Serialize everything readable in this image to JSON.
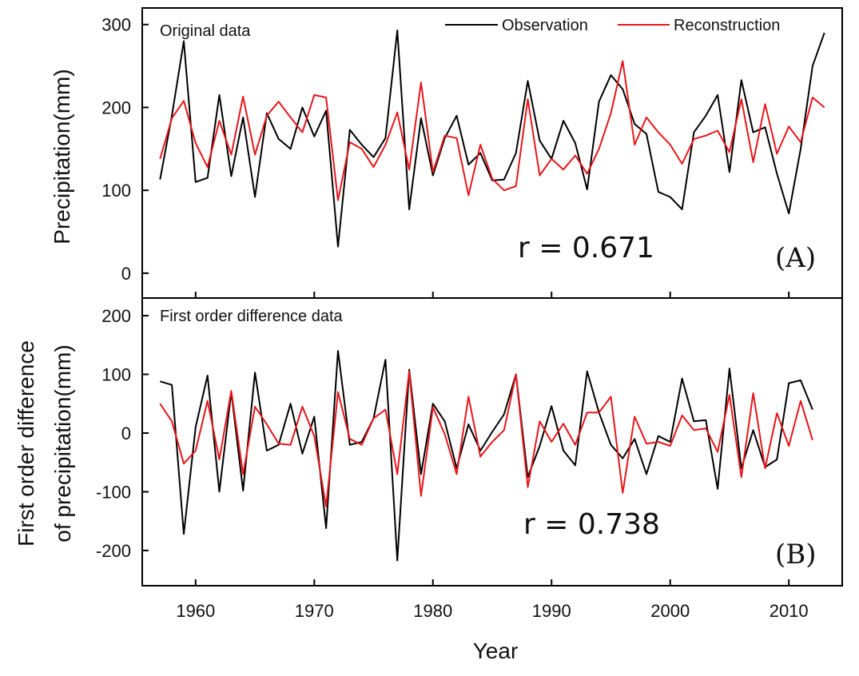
{
  "chart_data": {
    "type": "line",
    "xlabel": "Year",
    "x_ticks": [
      1960,
      1970,
      1980,
      1990,
      2000,
      2010
    ],
    "x_range": [
      1955.5,
      2014.5
    ],
    "legend": {
      "position": "top-right",
      "entries": [
        {
          "name": "Observation",
          "color": "#000000"
        },
        {
          "name": "Reconstruction",
          "color": "#e8161b"
        }
      ]
    },
    "panels": [
      {
        "id": "A",
        "panel_label": "(A)",
        "note": "Original data",
        "ylabel": "Precipitation(mm)",
        "ylabel_lines": [
          "Precipitation(mm)"
        ],
        "ylim": [
          -30,
          320
        ],
        "y_ticks": [
          0,
          100,
          200,
          300
        ],
        "r_label": "r = 0.671",
        "series": [
          {
            "name": "Observation",
            "start_year": 1957,
            "values": [
              113,
              190,
              280,
              110,
              115,
              215,
              117,
              188,
              92,
              193,
              162,
              150,
              200,
              165,
              196,
              32,
              173,
              155,
              140,
              163,
              293,
              77,
              187,
              118,
              163,
              190,
              131,
              145,
              112,
              113,
              145,
              232,
              160,
              138,
              184,
              157,
              101,
              207,
              239,
              222,
              180,
              168,
              98,
              92,
              77,
              170,
              190,
              215,
              122,
              233,
              170,
              176,
              120,
              72,
              150,
              250,
              290
            ]
          },
          {
            "name": "Reconstruction",
            "start_year": 1957,
            "values": [
              138,
              187,
              208,
              157,
              128,
              184,
              143,
              213,
              143,
              190,
              207,
              188,
              170,
              215,
              212,
              88,
              158,
              150,
              128,
              155,
              194,
              125,
              230,
              122,
              166,
              163,
              94,
              155,
              114,
              100,
              105,
              210,
              118,
              138,
              125,
              142,
              120,
              150,
              193,
              256,
              155,
              188,
              170,
              155,
              132,
              162,
              166,
              172,
              146,
              210,
              134,
              204,
              144,
              177,
              158,
              212,
              200
            ]
          }
        ]
      },
      {
        "id": "B",
        "panel_label": "(B)",
        "note": "First order difference data",
        "ylabel": "First order difference of precipitation(mm)",
        "ylabel_lines": [
          "First order difference",
          "of precipitation(mm)"
        ],
        "ylim": [
          -260,
          230
        ],
        "y_ticks": [
          -200,
          -100,
          0,
          100,
          200
        ],
        "r_label": "r = 0.738",
        "series": [
          {
            "name": "Observation",
            "start_year": 1957,
            "values": [
              88,
              82,
              -172,
              10,
              98,
              -100,
              70,
              -98,
              103,
              -30,
              -20,
              50,
              -35,
              28,
              -162,
              140,
              -20,
              -15,
              25,
              125,
              -217,
              108,
              -70,
              50,
              20,
              -60,
              15,
              -30,
              2,
              32,
              100,
              -75,
              -22,
              46,
              -30,
              -55,
              105,
              35,
              -20,
              -43,
              -10,
              -70,
              -5,
              -15,
              93,
              20,
              22,
              -95,
              110,
              -60,
              5,
              -58,
              -45,
              85,
              90,
              40
            ]
          },
          {
            "name": "Reconstruction",
            "start_year": 1957,
            "values": [
              50,
              20,
              -52,
              -30,
              55,
              -45,
              72,
              -70,
              45,
              15,
              -18,
              -20,
              45,
              -5,
              -125,
              70,
              -10,
              -20,
              25,
              40,
              -70,
              105,
              -107,
              44,
              -2,
              -70,
              62,
              -40,
              -15,
              5,
              100,
              -92,
              20,
              -15,
              16,
              -20,
              35,
              35,
              62,
              -102,
              28,
              -18,
              -15,
              -22,
              30,
              5,
              8,
              -32,
              65,
              -75,
              68,
              -60,
              34,
              -22,
              55,
              -12
            ]
          }
        ]
      }
    ]
  }
}
